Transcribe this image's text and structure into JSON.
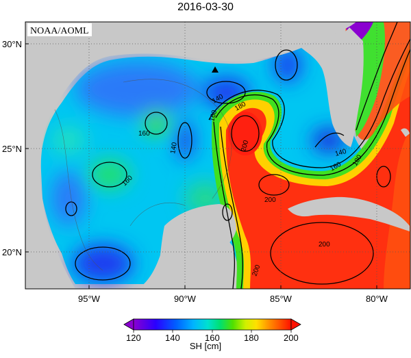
{
  "title": "2016-03-30",
  "source_label": "NOAA/AOML",
  "lat_labels": [
    "30°N",
    "25°N",
    "20°N"
  ],
  "lon_labels": [
    "95°W",
    "90°W",
    "85°W",
    "80°W"
  ],
  "contour_labels": [
    "140",
    "160",
    "180",
    "160",
    "140",
    "160",
    "200",
    "200",
    "200",
    "200",
    "180",
    "160",
    "140"
  ],
  "colorbar": {
    "ticks": [
      "120",
      "140",
      "160",
      "180",
      "200"
    ],
    "label": "SH [cm]",
    "colors": [
      "#9b00d6",
      "#3a00ff",
      "#0050ff",
      "#00b0ff",
      "#00e6e6",
      "#00e080",
      "#40e000",
      "#c0f000",
      "#ffff00",
      "#ffc000",
      "#ff7000",
      "#ff2000"
    ]
  }
}
